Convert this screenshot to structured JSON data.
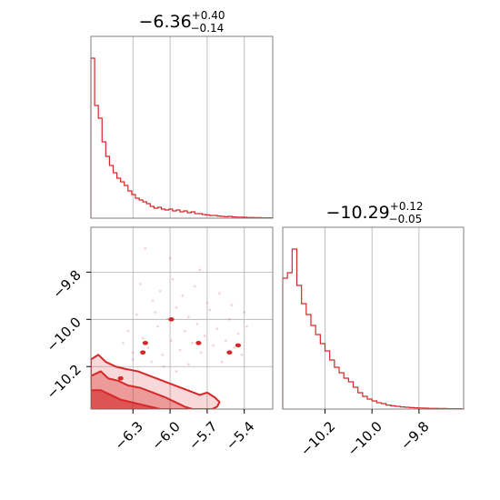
{
  "colors": {
    "line": "#d62728",
    "grid": "#b0b0b0",
    "frame": "#808080"
  },
  "chart_data": [
    {
      "type": "area",
      "panel": "marginal-param-1",
      "title": {
        "median": "−6.36",
        "plus": "+0.40",
        "minus": "−0.14"
      },
      "xlim": [
        -6.64,
        -5.17
      ],
      "ylim": [
        0,
        1
      ],
      "xticks": [
        -6.3,
        -6.0,
        -5.7,
        -5.4
      ],
      "grid": true,
      "x": [
        -6.64,
        -6.61,
        -6.58,
        -6.55,
        -6.52,
        -6.49,
        -6.46,
        -6.43,
        -6.4,
        -6.37,
        -6.34,
        -6.31,
        -6.28,
        -6.25,
        -6.22,
        -6.19,
        -6.16,
        -6.13,
        -6.1,
        -6.07,
        -6.04,
        -6.01,
        -5.98,
        -5.95,
        -5.92,
        -5.89,
        -5.86,
        -5.83,
        -5.8,
        -5.77,
        -5.74,
        -5.71,
        -5.68,
        -5.65,
        -5.62,
        -5.59,
        -5.56,
        -5.53,
        -5.5,
        -5.47,
        -5.44,
        -5.41,
        -5.38,
        -5.35,
        -5.32,
        -5.29,
        -5.26,
        -5.23,
        -5.2
      ],
      "values": [
        0.88,
        0.62,
        0.55,
        0.42,
        0.34,
        0.29,
        0.25,
        0.22,
        0.2,
        0.18,
        0.15,
        0.13,
        0.11,
        0.1,
        0.09,
        0.08,
        0.065,
        0.055,
        0.06,
        0.05,
        0.045,
        0.05,
        0.04,
        0.045,
        0.035,
        0.04,
        0.03,
        0.035,
        0.025,
        0.025,
        0.02,
        0.018,
        0.015,
        0.015,
        0.012,
        0.01,
        0.008,
        0.01,
        0.007,
        0.006,
        0.006,
        0.005,
        0.004,
        0.004,
        0.003,
        0.003,
        0.002,
        0.002,
        0.002
      ]
    },
    {
      "type": "area",
      "panel": "marginal-param-2",
      "title": {
        "median": "−10.29",
        "plus": "+0.12",
        "minus": "−0.05"
      },
      "xlim": [
        -10.38,
        -9.61
      ],
      "ylim": [
        0,
        1
      ],
      "xticks": [
        -10.2,
        -10.0,
        -9.8
      ],
      "grid": true,
      "x": [
        -10.38,
        -10.36,
        -10.34,
        -10.32,
        -10.3,
        -10.28,
        -10.26,
        -10.24,
        -10.22,
        -10.2,
        -10.18,
        -10.16,
        -10.14,
        -10.12,
        -10.1,
        -10.08,
        -10.06,
        -10.04,
        -10.02,
        -10.0,
        -9.98,
        -9.96,
        -9.94,
        -9.92,
        -9.9,
        -9.88,
        -9.86,
        -9.84,
        -9.82,
        -9.8,
        -9.78,
        -9.76,
        -9.74,
        -9.72,
        -9.7,
        -9.68,
        -9.66,
        -9.64,
        -9.62
      ],
      "values": [
        0.72,
        0.75,
        0.88,
        0.68,
        0.58,
        0.52,
        0.46,
        0.41,
        0.36,
        0.32,
        0.27,
        0.23,
        0.2,
        0.17,
        0.15,
        0.12,
        0.09,
        0.07,
        0.055,
        0.045,
        0.035,
        0.03,
        0.022,
        0.018,
        0.015,
        0.012,
        0.01,
        0.008,
        0.007,
        0.006,
        0.005,
        0.004,
        0.004,
        0.003,
        0.003,
        0.002,
        0.002,
        0.002,
        0.001
      ]
    },
    {
      "type": "scatter",
      "panel": "joint-param-1-vs-param-2",
      "xlim": [
        -6.64,
        -5.17
      ],
      "ylim": [
        -10.38,
        -9.61
      ],
      "xticks": [
        -6.3,
        -6.0,
        -5.7,
        -5.4
      ],
      "yticks": [
        -9.8,
        -10.0,
        -10.2
      ],
      "grid": true,
      "contour_levels": [
        {
          "level": "inner",
          "points": [
            [
              -6.64,
              -10.38
            ],
            [
              -6.64,
              -10.3
            ],
            [
              -6.56,
              -10.3
            ],
            [
              -6.48,
              -10.32
            ],
            [
              -6.4,
              -10.34
            ],
            [
              -6.32,
              -10.35
            ],
            [
              -6.24,
              -10.36
            ],
            [
              -6.16,
              -10.37
            ],
            [
              -6.08,
              -10.38
            ]
          ]
        },
        {
          "level": "middle",
          "points": [
            [
              -6.64,
              -10.38
            ],
            [
              -6.64,
              -10.24
            ],
            [
              -6.56,
              -10.22
            ],
            [
              -6.5,
              -10.25
            ],
            [
              -6.42,
              -10.26
            ],
            [
              -6.34,
              -10.28
            ],
            [
              -6.24,
              -10.29
            ],
            [
              -6.14,
              -10.31
            ],
            [
              -6.04,
              -10.33
            ],
            [
              -5.96,
              -10.35
            ],
            [
              -5.88,
              -10.37
            ],
            [
              -5.82,
              -10.38
            ]
          ]
        },
        {
          "level": "outer",
          "points": [
            [
              -6.64,
              -10.38
            ],
            [
              -6.64,
              -10.17
            ],
            [
              -6.58,
              -10.15
            ],
            [
              -6.52,
              -10.18
            ],
            [
              -6.44,
              -10.2
            ],
            [
              -6.36,
              -10.21
            ],
            [
              -6.26,
              -10.22
            ],
            [
              -6.16,
              -10.24
            ],
            [
              -6.06,
              -10.26
            ],
            [
              -5.96,
              -10.28
            ],
            [
              -5.86,
              -10.3
            ],
            [
              -5.76,
              -10.32
            ],
            [
              -5.7,
              -10.31
            ],
            [
              -5.64,
              -10.33
            ],
            [
              -5.6,
              -10.35
            ],
            [
              -5.62,
              -10.37
            ],
            [
              -5.66,
              -10.38
            ]
          ]
        }
      ],
      "scatter_points": [
        [
          -6.38,
          -10.1
        ],
        [
          -6.34,
          -10.05
        ],
        [
          -6.3,
          -10.14
        ],
        [
          -6.27,
          -9.98
        ],
        [
          -6.22,
          -10.08
        ],
        [
          -6.18,
          -10.12
        ],
        [
          -6.14,
          -9.92
        ],
        [
          -6.1,
          -10.03
        ],
        [
          -6.06,
          -10.15
        ],
        [
          -6.02,
          -10.0
        ],
        [
          -5.99,
          -10.09
        ],
        [
          -5.95,
          -9.95
        ],
        [
          -5.92,
          -10.13
        ],
        [
          -5.88,
          -10.05
        ],
        [
          -5.85,
          -9.99
        ],
        [
          -5.82,
          -10.1
        ],
        [
          -5.78,
          -10.02
        ],
        [
          -5.75,
          -10.14
        ],
        [
          -5.72,
          -10.07
        ],
        [
          -5.68,
          -9.96
        ],
        [
          -5.65,
          -10.11
        ],
        [
          -5.62,
          -10.04
        ],
        [
          -5.58,
          -10.18
        ],
        [
          -5.55,
          -10.09
        ],
        [
          -5.52,
          -10.0
        ],
        [
          -5.48,
          -10.12
        ],
        [
          -5.45,
          -10.06
        ],
        [
          -5.42,
          -10.15
        ],
        [
          -5.38,
          -10.03
        ],
        [
          -6.24,
          -9.85
        ],
        [
          -6.08,
          -9.88
        ],
        [
          -5.98,
          -9.83
        ],
        [
          -5.9,
          -9.9
        ],
        [
          -5.8,
          -9.86
        ],
        [
          -5.7,
          -9.93
        ],
        [
          -5.6,
          -9.89
        ],
        [
          -6.15,
          -10.18
        ],
        [
          -6.05,
          -10.2
        ],
        [
          -5.95,
          -10.22
        ],
        [
          -5.85,
          -10.19
        ],
        [
          -6.3,
          -10.17
        ],
        [
          -5.5,
          -9.94
        ],
        [
          -5.4,
          -9.97
        ],
        [
          -6.0,
          -9.74
        ],
        [
          -6.2,
          -9.7
        ],
        [
          -6.12,
          -9.97
        ],
        [
          -5.76,
          -9.79
        ]
      ],
      "dense_dots": [
        [
          -6.2,
          -10.1
        ],
        [
          -6.22,
          -10.14
        ],
        [
          -5.99,
          -10.0
        ],
        [
          -5.77,
          -10.1
        ],
        [
          -6.4,
          -10.25
        ],
        [
          -5.45,
          -10.11
        ],
        [
          -5.52,
          -10.14
        ]
      ]
    }
  ]
}
